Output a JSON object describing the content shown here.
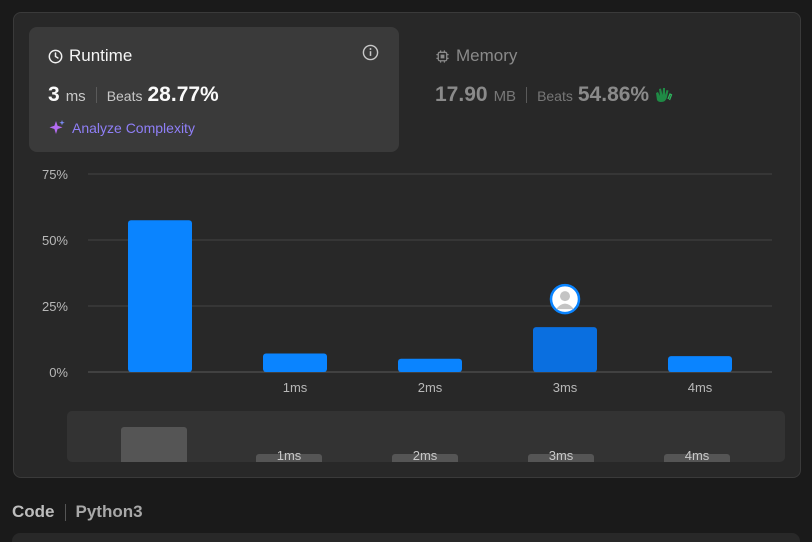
{
  "runtime": {
    "title": "Runtime",
    "value": "3",
    "unit": "ms",
    "beats_label": "Beats",
    "beats_value": "28.77%",
    "analyze_label": "Analyze Complexity"
  },
  "memory": {
    "title": "Memory",
    "value": "17.90",
    "unit": "MB",
    "beats_label": "Beats",
    "beats_value": "54.86%"
  },
  "chart_data": {
    "type": "bar",
    "categories": [
      "",
      "1ms",
      "2ms",
      "3ms",
      "4ms"
    ],
    "values": [
      57.5,
      7,
      5,
      17,
      6
    ],
    "highlight_index": 3,
    "ylim": [
      0,
      75
    ],
    "yticks": [
      0,
      25,
      50,
      75
    ],
    "ytick_labels": [
      "0%",
      "25%",
      "50%",
      "75%"
    ],
    "title": "",
    "xlabel": "",
    "ylabel": "",
    "grid": true
  },
  "minimap": {
    "labels": [
      "",
      "1ms",
      "2ms",
      "3ms",
      "4ms"
    ],
    "selected_index": 0
  },
  "code": {
    "label": "Code",
    "language": "Python3"
  },
  "colors": {
    "bar": "#0a84ff",
    "bar_highlight": "#0a6fe0",
    "grid": "#454545",
    "accent_purple": "#8f7ff7",
    "memory_icon_green": "#2db55d"
  }
}
